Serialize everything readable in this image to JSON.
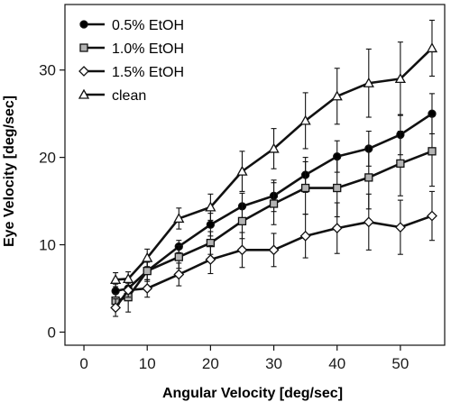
{
  "chart_data": {
    "type": "line",
    "xlabel": "Angular Velocity [deg/sec]",
    "ylabel": "Eye Velocity [deg/sec]",
    "xlim": [
      -3,
      57
    ],
    "ylim": [
      -1.5,
      37.5
    ],
    "xticks": [
      0,
      10,
      20,
      30,
      40,
      50
    ],
    "yticks": [
      0,
      10,
      20,
      30
    ],
    "grid": false,
    "legend_position": "top-left",
    "x": [
      5,
      7,
      10,
      15,
      20,
      25,
      30,
      35,
      40,
      45,
      50,
      55
    ],
    "series": [
      {
        "name": "0.5% EtOH",
        "marker": "circle",
        "marker_fill": "#000000",
        "values": [
          4.7,
          5.0,
          7.0,
          9.8,
          12.3,
          14.4,
          15.6,
          18.0,
          20.1,
          21.0,
          22.6,
          25.0
        ],
        "errors": [
          0.8,
          0.9,
          1.0,
          0.7,
          1.3,
          1.5,
          1.8,
          2.0,
          1.8,
          2.0,
          2.3,
          2.3
        ]
      },
      {
        "name": "1.0% EtOH",
        "marker": "square",
        "marker_fill": "#b3b3b3",
        "values": [
          3.6,
          4.0,
          7.0,
          8.6,
          10.2,
          12.7,
          14.7,
          16.5,
          16.5,
          17.7,
          19.3,
          20.7
        ],
        "errors": [
          0.8,
          1.7,
          1.2,
          1.3,
          1.3,
          2.0,
          2.4,
          3.0,
          3.3,
          3.6,
          3.7,
          4.0
        ]
      },
      {
        "name": "1.5% EtOH",
        "marker": "diamond",
        "marker_fill": "#ffffff",
        "values": [
          2.8,
          4.8,
          5.0,
          6.6,
          8.3,
          9.4,
          9.4,
          11.0,
          11.9,
          12.6,
          12.0,
          13.3
        ]
      },
      {
        "name": "clean",
        "marker": "triangle",
        "marker_fill": "#ffffff",
        "values": [
          6.0,
          6.1,
          8.5,
          13.0,
          14.3,
          18.4,
          21.0,
          24.2,
          27.0,
          28.5,
          29.0,
          32.5
        ],
        "errors": [
          0.8,
          0.8,
          1.0,
          1.2,
          1.5,
          2.3,
          2.3,
          3.2,
          3.2,
          3.9,
          4.2,
          3.2
        ]
      }
    ],
    "series_errors_15": [
      1.0,
      0.8,
      1.0,
      1.3,
      1.6,
      2.0,
      1.9,
      2.5,
      2.9,
      3.2,
      3.1,
      2.8
    ]
  },
  "colors": {
    "line": "#111111",
    "square_fill": "#b3b3b3"
  }
}
